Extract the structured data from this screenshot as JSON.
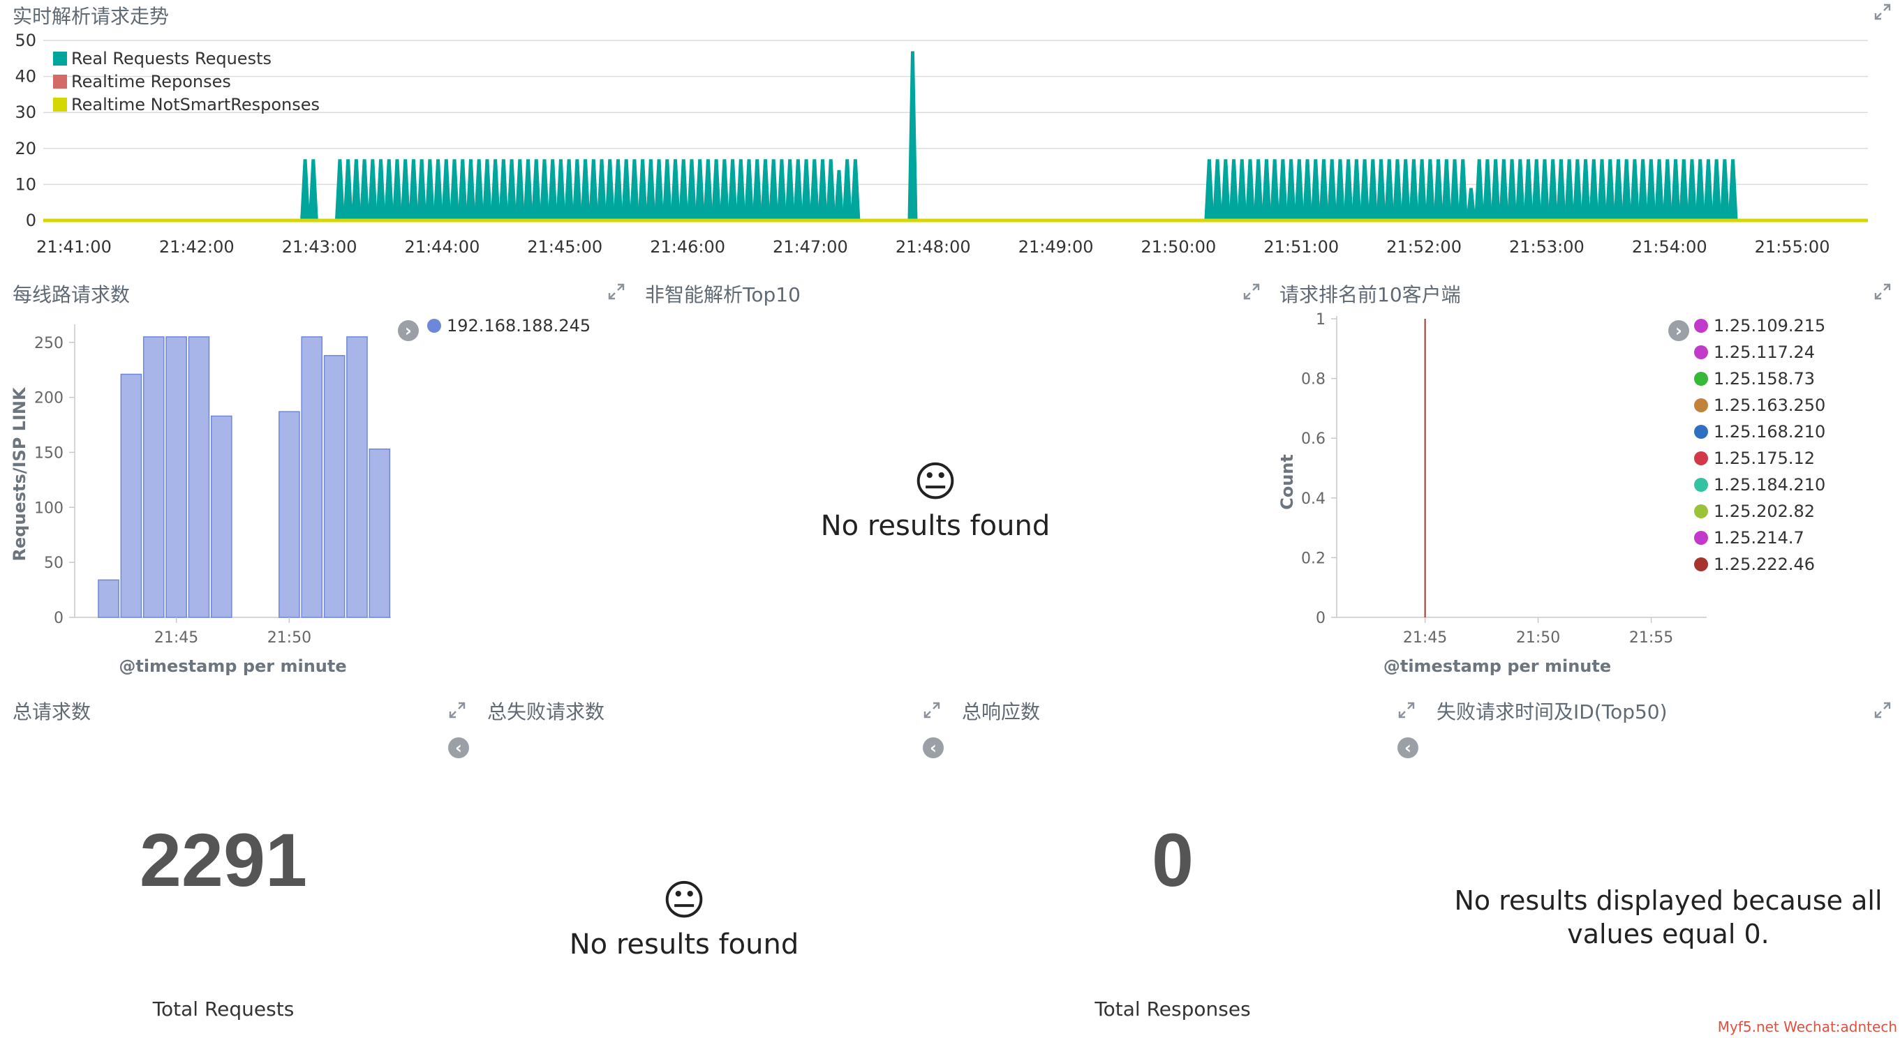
{
  "panels": {
    "trend": {
      "title": "实时解析请求走势",
      "legend": [
        {
          "label": "Real Requests Requests",
          "color": "#00a69b"
        },
        {
          "label": "Realtime Reponses",
          "color": "#d36a67"
        },
        {
          "label": "Realtime NotSmartResponses",
          "color": "#d4d800"
        }
      ]
    },
    "per_line": {
      "title": "每线路请求数",
      "ylabel": "Requests/ISP LINK",
      "xlabel": "@timestamp per minute",
      "legend": [
        {
          "label": "192.168.188.245",
          "color": "#6f87d8"
        }
      ]
    },
    "not_smart": {
      "title": "非智能解析Top10",
      "message": "No results found"
    },
    "top_clients": {
      "title": "请求排名前10客户端",
      "ylabel": "Count",
      "xlabel": "@timestamp per minute",
      "legend": [
        {
          "label": "1.25.109.215",
          "color": "#c13ac9"
        },
        {
          "label": "1.25.117.24",
          "color": "#c13ac9"
        },
        {
          "label": "1.25.158.73",
          "color": "#37b837"
        },
        {
          "label": "1.25.163.250",
          "color": "#c18239"
        },
        {
          "label": "1.25.168.210",
          "color": "#2f6fc2"
        },
        {
          "label": "1.25.175.12",
          "color": "#d2374a"
        },
        {
          "label": "1.25.184.210",
          "color": "#34c3a1"
        },
        {
          "label": "1.25.202.82",
          "color": "#9ac33a"
        },
        {
          "label": "1.25.214.7",
          "color": "#c13ac9"
        },
        {
          "label": "1.25.222.46",
          "color": "#a8342e"
        }
      ]
    },
    "total_requests": {
      "title": "总请求数",
      "value": "2291",
      "label": "Total Requests"
    },
    "total_failed": {
      "title": "总失败请求数",
      "message": "No results found"
    },
    "total_responses": {
      "title": "总响应数",
      "value": "0",
      "label": "Total Responses"
    },
    "failed_time": {
      "title": "失败请求时间及ID(Top50)",
      "message": "No results displayed because all values equal 0."
    }
  },
  "icons": {
    "expand": "expand-icon",
    "chevron_right": "chevron-right-icon",
    "chevron_left": "chevron-left-icon",
    "neutral_face": "neutral-face-icon"
  },
  "watermark": "Myf5.net Wechat:adntech",
  "chart_data": [
    {
      "type": "area",
      "title": "实时解析请求走势",
      "ylim": [
        0,
        50
      ],
      "yticks": [
        0,
        10,
        20,
        30,
        40,
        50
      ],
      "xticks": [
        "21:41:00",
        "21:42:00",
        "21:43:00",
        "21:44:00",
        "21:45:00",
        "21:46:00",
        "21:47:00",
        "21:48:00",
        "21:49:00",
        "21:50:00",
        "21:51:00",
        "21:52:00",
        "21:53:00",
        "21:54:00",
        "21:55:00"
      ],
      "x_range": [
        "21:40:45",
        "21:55:37"
      ],
      "grid": true,
      "legend_position": "top-left",
      "series": [
        {
          "name": "Real Requests Requests",
          "color": "#00a69b",
          "spike_groups": [
            {
              "start": "21:42:53",
              "end": "21:42:58",
              "step_seconds": 4,
              "value": 17
            },
            {
              "start": "21:43:10",
              "end": "21:47:22",
              "step_seconds": 4,
              "value": 17
            },
            {
              "start": "21:47:50",
              "end": "21:47:50",
              "step_seconds": 4,
              "value": 47
            },
            {
              "start": "21:50:15",
              "end": "21:54:31",
              "step_seconds": 4,
              "value": 17
            }
          ],
          "dips": [
            {
              "time": "21:47:14",
              "value": 14
            },
            {
              "time": "21:52:23",
              "value": 9
            }
          ]
        },
        {
          "name": "Realtime Reponses",
          "color": "#d36a67",
          "value": 0
        },
        {
          "name": "Realtime NotSmartResponses",
          "color": "#d4d800",
          "value": 0
        }
      ]
    },
    {
      "type": "bar",
      "title": "每线路请求数",
      "xlabel": "@timestamp per minute",
      "ylabel": "Requests/ISP LINK",
      "ylim": [
        0,
        260
      ],
      "yticks": [
        0,
        50,
        100,
        150,
        200,
        250
      ],
      "xticks": [
        "21:45",
        "21:50"
      ],
      "minutes": [
        "21:42",
        "21:43",
        "21:44",
        "21:45",
        "21:46",
        "21:47",
        "21:48",
        "21:49",
        "21:50",
        "21:51",
        "21:52",
        "21:53",
        "21:54"
      ],
      "series": [
        {
          "name": "192.168.188.245",
          "color": "#a8b5e8",
          "values": [
            34,
            221,
            255,
            255,
            255,
            183,
            0,
            0,
            187,
            255,
            238,
            255,
            153
          ]
        }
      ]
    },
    {
      "type": "line",
      "title": "请求排名前10客户端",
      "xlabel": "@timestamp per minute",
      "ylabel": "Count",
      "ylim": [
        0,
        1
      ],
      "yticks": [
        0,
        0.2,
        0.4,
        0.6,
        0.8,
        1
      ],
      "xticks": [
        "21:45",
        "21:50",
        "21:55"
      ],
      "marker": {
        "time": "21:45",
        "color": "#a8342e"
      }
    }
  ]
}
